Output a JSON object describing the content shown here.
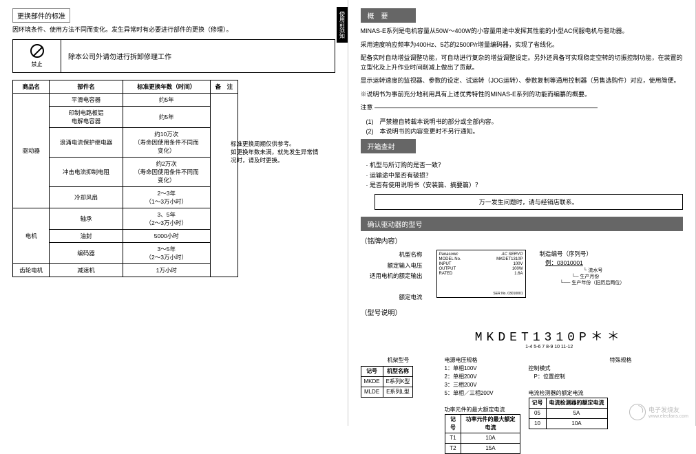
{
  "left": {
    "section_title": "更换部件的标准",
    "intro": "因环境条件、使用方法不同而变化。发生异常时有必要进行部件的更换（修理）。",
    "warning_label": "禁止",
    "warning_text": "除本公司外请勿进行拆卸修理工作",
    "table": {
      "headers": [
        "商品名",
        "部件名",
        "标准更换年数（时间）",
        "备　注"
      ],
      "rows": [
        {
          "c0": "驱动器",
          "c0_rowspan": 5,
          "c1": "平滑电容器",
          "c2": "约5年"
        },
        {
          "c1": "印制电路板铝\n电解电容器",
          "c2": "约5年"
        },
        {
          "c1": "浪涌电流保护继电器",
          "c2": "约10万次\n（寿命因使用条件不同而\n变化）"
        },
        {
          "c1": "冲击电流抑制电阻",
          "c2": "约2万次\n（寿命因使用条件不同而\n变化）"
        },
        {
          "c1": "冷却风扇",
          "c2": "2～3年\n（1～3万小时）"
        },
        {
          "c0": "电机",
          "c0_rowspan": 3,
          "c1": "轴承",
          "c2": "3、5年\n（2～3万小时）"
        },
        {
          "c1": "油封",
          "c2": "5000小时"
        },
        {
          "c1": "编码器",
          "c2": "3～5年\n（2～3万小时）"
        },
        {
          "c0": "齿轮电机",
          "c1": "减速机",
          "c2": "1万小时"
        }
      ],
      "note": "标准更换周期仅供参考。\n如更换年数未满，就先发生异常情\n况时，请及时更换。"
    },
    "side_tab": "使用前须知"
  },
  "right": {
    "overview_title": "概　要",
    "overview_body": [
      "MINAS-E系列是电机容量从50W～400W的小容量用途中发挥其性能的小型AC伺服电机与驱动器。",
      "采用速度响应频率为400Hz、5芯的2500P/r增量编码器，实现了省线化。",
      "配备实时自动增益调整功能，可自动进行复杂的增益调整设定。另外还具备可实现稳定空转的切振控制功能，在装置的立型化及上升作业时间削减上做出了贡献。",
      "显示运转速度的监视器、参数的设定、试运转（JOG运转）、参数复制等通用控制器（另售选购件）对应，使用简便。",
      "※说明书为事前充分地利用具有上述优秀特性的MINAS-E系列的功能而编纂的概要。"
    ],
    "notice_header": "注意 ————————————————————————————————————",
    "notice_items": [
      "(1)　严禁擅自转载本说明书的部分或全部内容。",
      "(2)　本说明书的内容变更时不另行通知。"
    ],
    "unbox_title": "开箱查封",
    "unbox_items": [
      "· 机型与所订购的是否一致？",
      "· 运输途中是否有破损？",
      "· 是否有使用说明书（安装篇、摘要篇）？"
    ],
    "unbox_box": "万一发生问题时，请与经销店联系。",
    "confirm_title": "确认驱动器的型号",
    "nameplate_header": "（铭牌内容）",
    "labels": {
      "model_name": "机型名称",
      "rated_input": "额定输入电压",
      "motor_output": "适用电机的额定输出",
      "rated_current": "额定电流",
      "mfg_code": "制造编号（序列号）",
      "mfg_example": "例：03010001",
      "serial": "流水号",
      "mfg_month": "生产月份",
      "mfg_year": "生产年份（旧历后两位）"
    },
    "nameplate_brand": "Panasonic",
    "nameplate_servo": "AC SERVO",
    "model_title": "（型号说明）",
    "model_string": "MKDET1310P＊＊",
    "model_segments": "1-4         5-6  7      8-9  10  11-12",
    "seg_labels": {
      "frame": "机架型号",
      "special": "特殊规格",
      "ctrl_mode": "控制模式",
      "ctrl_mode_p": "P：位置控制",
      "current_det": "电流检测器的额定电流",
      "psu": "电源电压规格",
      "psu1": "1：单相100V",
      "psu2": "2：单相200V",
      "psu3": "3：三相200V",
      "psu5": "5：单相／三相200V",
      "power": "功率元件的最大额定电流"
    },
    "frame_table": {
      "h": [
        "记号",
        "机型名称"
      ],
      "r": [
        [
          "MKDE",
          "E系列K型"
        ],
        [
          "MLDE",
          "E系列L型"
        ]
      ]
    },
    "current_table": {
      "h": [
        "记号",
        "电流检测器的额定电流"
      ],
      "r": [
        [
          "05",
          "5A"
        ],
        [
          "10",
          "10A"
        ]
      ]
    },
    "power_table": {
      "h": [
        "记号",
        "功率元件的最大额定电流"
      ],
      "r": [
        [
          "T1",
          "10A"
        ],
        [
          "T2",
          "15A"
        ]
      ]
    },
    "watermark": "电子发烧友",
    "watermark_url": "www.elecfans.com"
  }
}
